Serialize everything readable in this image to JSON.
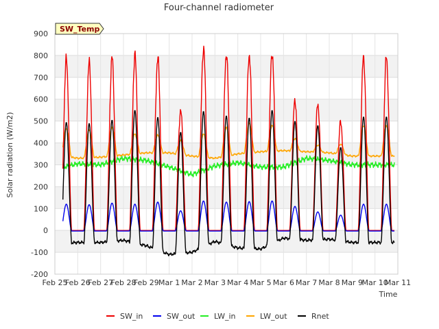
{
  "chart_data": {
    "type": "line",
    "title": "Four-channel radiometer",
    "xlabel": "Time",
    "ylabel": "Solar radiation (W/m2)",
    "badge": "SW_Temp",
    "ylim": [
      -200,
      900
    ],
    "yticks": [
      -200,
      -100,
      0,
      100,
      200,
      300,
      400,
      500,
      600,
      700,
      800,
      900
    ],
    "xlim": [
      0,
      15
    ],
    "xticks": [
      "Feb 25",
      "Feb 26",
      "Feb 27",
      "Feb 28",
      "Feb 29",
      "Mar 1",
      "Mar 2",
      "Mar 3",
      "Mar 4",
      "Mar 5",
      "Mar 6",
      "Mar 7",
      "Mar 8",
      "Mar 9",
      "Mar 10",
      "Mar 11"
    ],
    "grid": true,
    "legend_position": "bottom",
    "series": [
      {
        "name": "SW_in",
        "color": "#ee0000"
      },
      {
        "name": "SW_out",
        "color": "#0000ee"
      },
      {
        "name": "LW_in",
        "color": "#22ee22"
      },
      {
        "name": "LW_out",
        "color": "#ffa500"
      },
      {
        "name": "Rnet",
        "color": "#000000"
      }
    ],
    "daily": {
      "sw_in_peak": [
        780,
        765,
        788,
        800,
        790,
        550,
        835,
        810,
        805,
        815,
        600,
        580,
        500,
        790
      ],
      "sw_out_peak": [
        120,
        118,
        125,
        120,
        130,
        90,
        135,
        130,
        132,
        135,
        110,
        85,
        70,
        120
      ],
      "rnet_peak": [
        495,
        490,
        505,
        550,
        518,
        450,
        545,
        525,
        515,
        550,
        500,
        480,
        380,
        520
      ],
      "rnet_night": [
        -60,
        -55,
        -55,
        -45,
        -70,
        -110,
        -100,
        -50,
        -80,
        -85,
        -35,
        -45,
        -40,
        -55
      ],
      "lw_in": [
        280,
        305,
        300,
        330,
        320,
        290,
        255,
        295,
        310,
        290,
        290,
        330,
        320,
        300
      ],
      "lw_out": [
        345,
        330,
        335,
        345,
        355,
        355,
        340,
        330,
        350,
        360,
        365,
        360,
        355,
        340
      ],
      "lw_out_peak": [
        465,
        460,
        470,
        440,
        435,
        410,
        440,
        470,
        490,
        480,
        420,
        390,
        395,
        480
      ]
    }
  }
}
